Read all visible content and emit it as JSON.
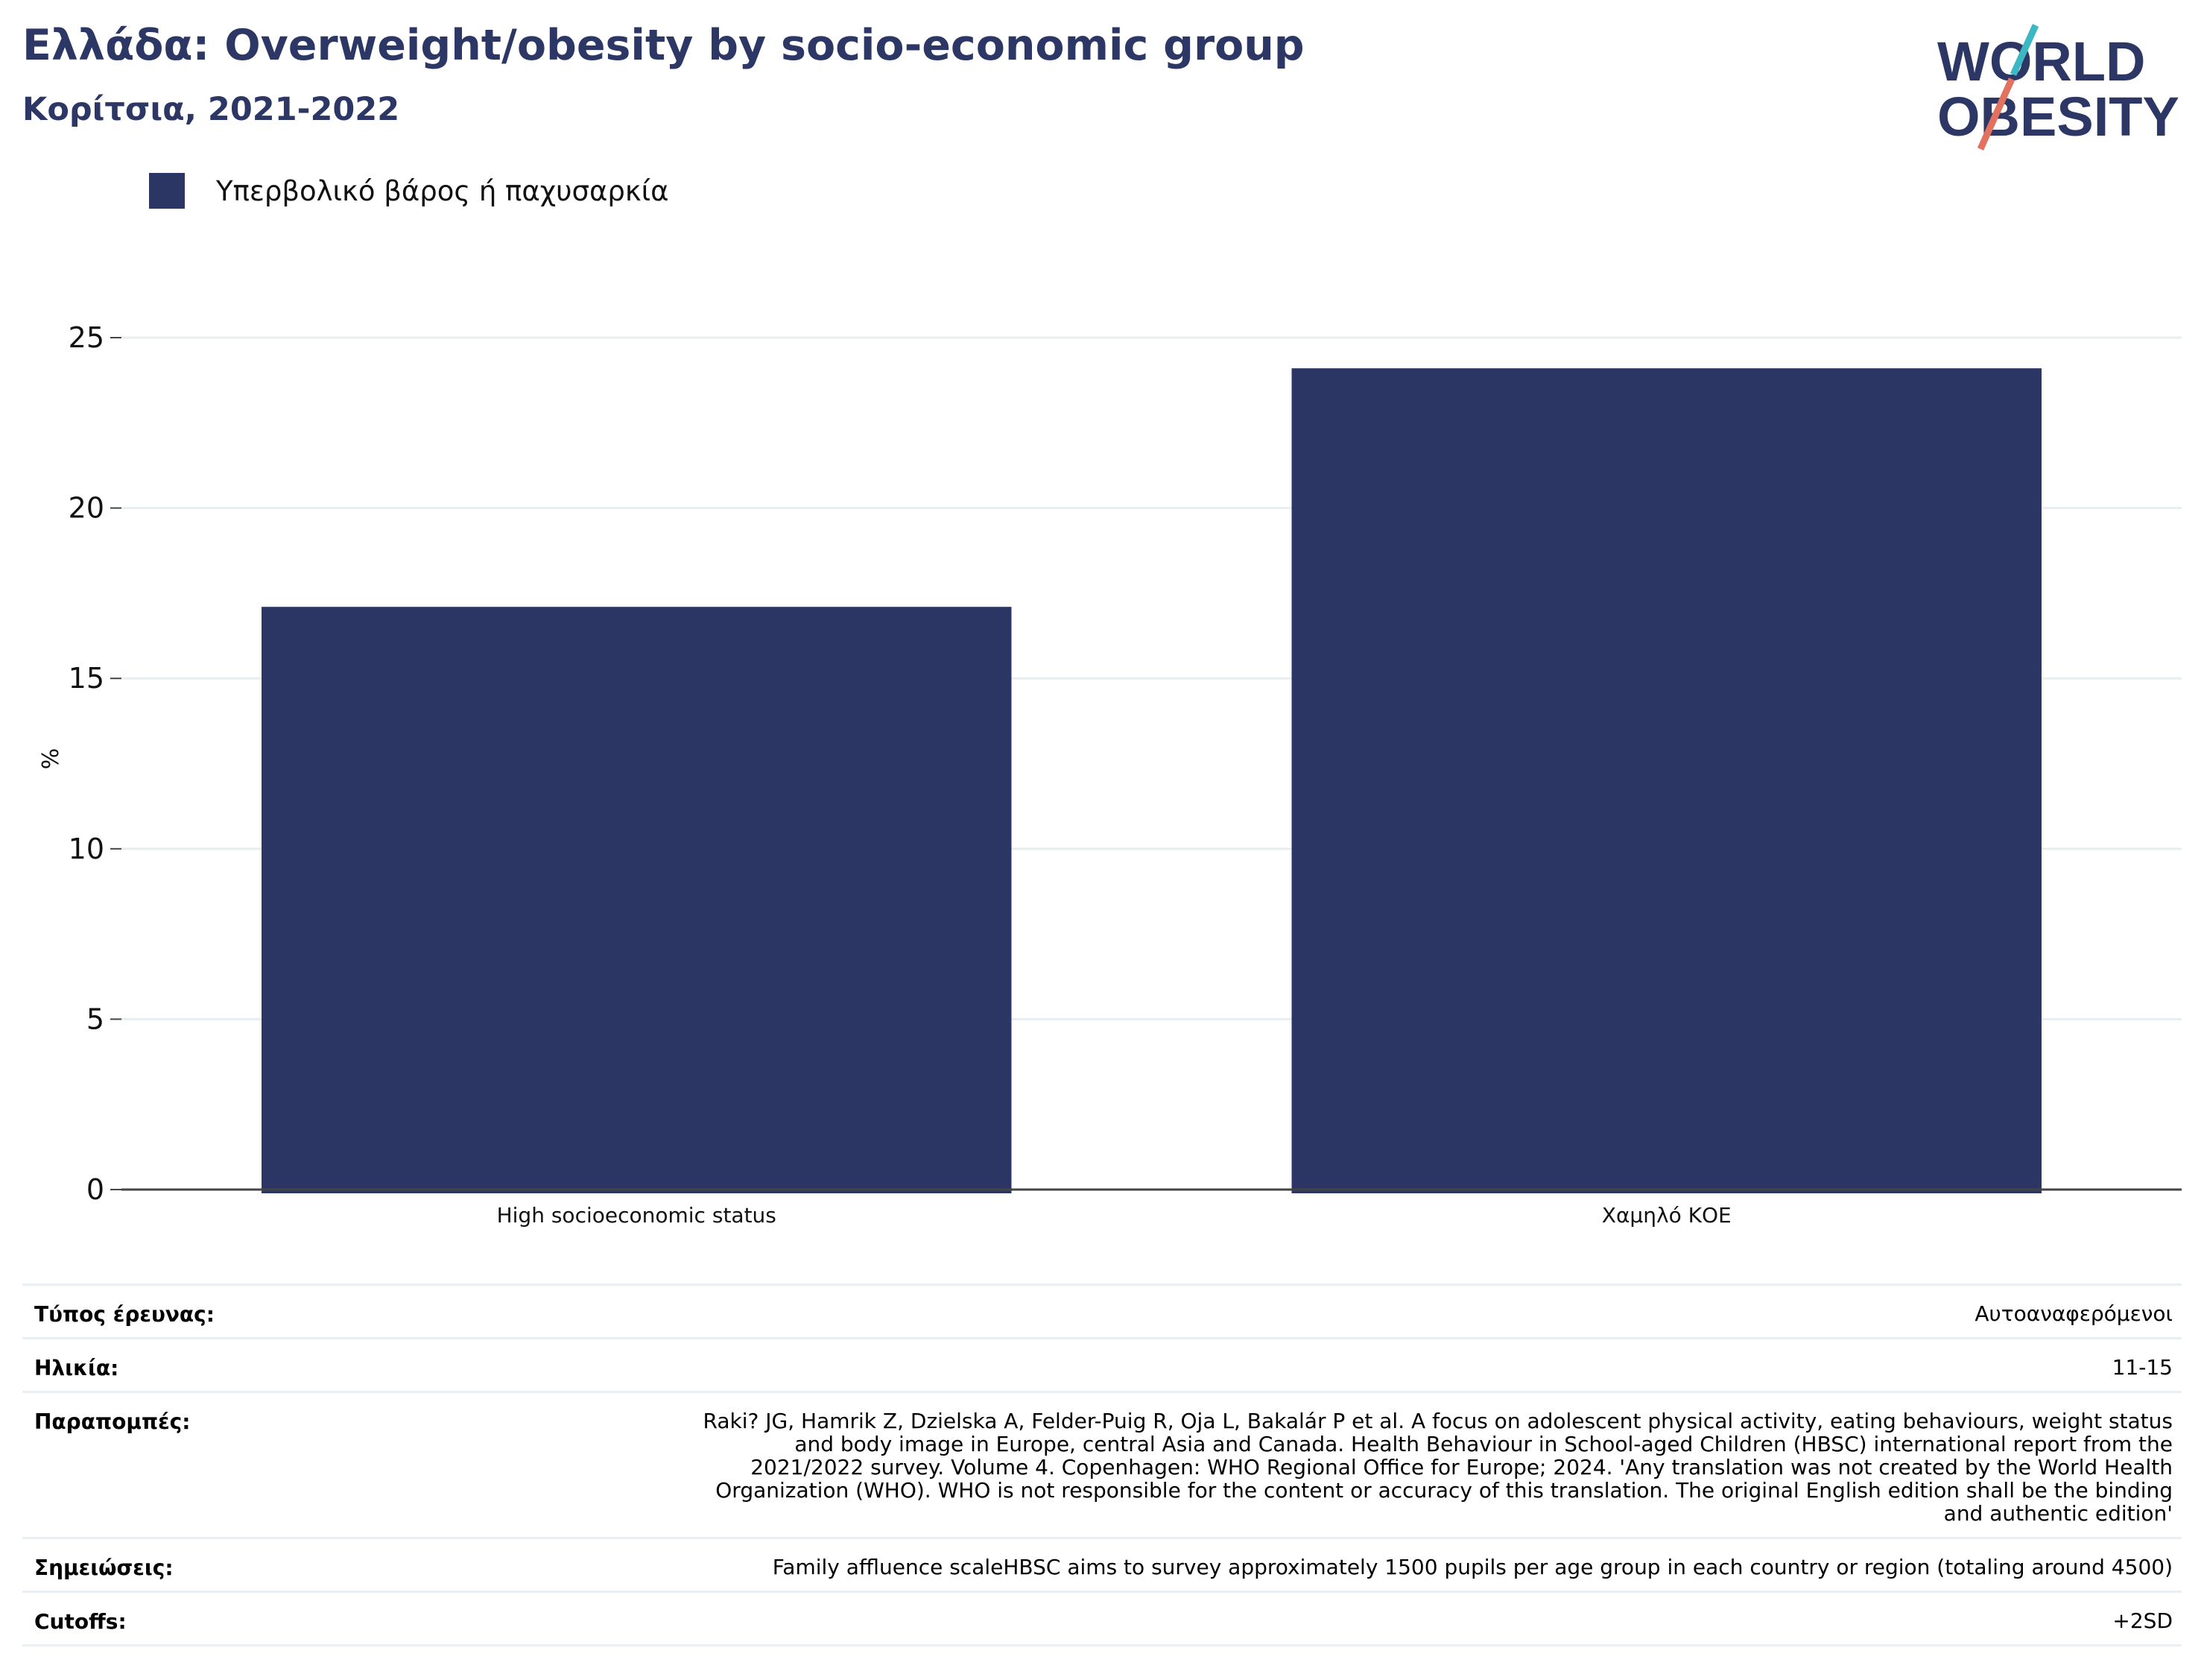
{
  "header": {
    "title": "Ελλάδα: Overweight/obesity by socio-economic group",
    "subtitle": "Κορίτσια, 2021-2022"
  },
  "logo": {
    "line1": "WORLD",
    "line2": "OBESITY",
    "colors": {
      "text": "#2c3765",
      "slash_top": "#3bb8c3",
      "slash_bottom": "#e2715f"
    }
  },
  "legend": {
    "label": "Υπερβολικό βάρος ή παχυσαρκία",
    "color": "#2b3664"
  },
  "chart_data": {
    "type": "bar",
    "categories": [
      "High socioeconomic status",
      "Χαμηλό ΚΟΕ"
    ],
    "series": [
      {
        "name": "Υπερβολικό βάρος ή παχυσαρκία",
        "values": [
          17.1,
          24.1
        ],
        "color": "#2b3664"
      }
    ],
    "ylabel": "%",
    "ylim": [
      0,
      25
    ],
    "yticks": [
      0,
      5,
      10,
      15,
      20,
      25
    ],
    "grid": true,
    "legend_position": "top-left"
  },
  "info": {
    "survey_type": {
      "label": "Τύπος έρευνας:",
      "value": "Αυτοαναφερόμενοι"
    },
    "age": {
      "label": "Ηλικία:",
      "value": "11-15"
    },
    "references": {
      "label": "Παραπομπές:",
      "lines": [
        "Raki? JG, Hamrik Z, Dzielska A, Felder-Puig R, Oja L, Bakalár P et al. A focus on adolescent physical activity, eating behaviours, weight status",
        "and body image in Europe, central Asia and Canada. Health Behaviour in School-aged Children (HBSC) international report from the",
        "2021/2022 survey. Volume 4. Copenhagen: WHO Regional Office for Europe; 2024. 'Any translation was not created by the World Health",
        "Organization (WHO). WHO is not responsible for the content or accuracy of this translation. The original English edition shall be the binding",
        "and authentic edition'"
      ]
    },
    "notes": {
      "label": "Σημειώσεις:",
      "value": "Family affluence scaleHBSC aims to survey approximately 1500 pupils per age group in each country or region (totaling around 4500)"
    },
    "cutoffs": {
      "label": "Cutoffs:",
      "value": "+2SD"
    }
  }
}
